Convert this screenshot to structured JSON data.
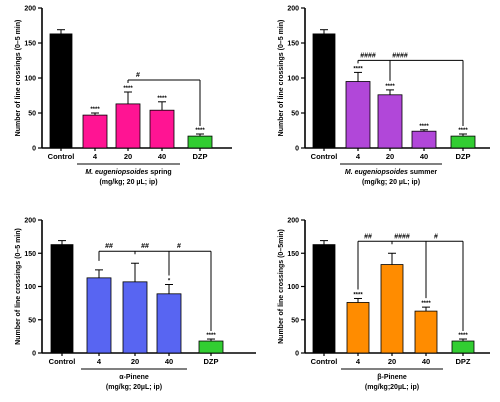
{
  "chart_data": [
    {
      "type": "bar",
      "ylabel": "Number of line crossings (0–5 min)",
      "xlabel_italic": "M. eugeniopsoides",
      "xlabel_rest": " spring",
      "xlabel_line2": "(mg/kg; 20 µL; ip)",
      "group_label": "",
      "ylim": [
        0,
        200
      ],
      "yticks": [
        "0",
        "50",
        "100",
        "150",
        "200"
      ],
      "categories": [
        "Control",
        "4",
        "20",
        "40",
        "DZP"
      ],
      "values": [
        163,
        47,
        63,
        54,
        17
      ],
      "errors": [
        6,
        3,
        17,
        12,
        3
      ],
      "colors": [
        "#000000",
        "#ff1493",
        "#ff1493",
        "#ff1493",
        "#32cd32"
      ],
      "sig_labels": [
        "",
        "****",
        "****",
        "****",
        "****"
      ],
      "brackets": [
        {
          "from": 2,
          "to": 4,
          "label": "#"
        }
      ]
    },
    {
      "type": "bar",
      "ylabel": "Number of line crossings (0–5 min)",
      "xlabel_italic": "M. eugeniopsoides",
      "xlabel_rest": " summer",
      "xlabel_line2": "(mg/kg; 20 µL; ip)",
      "group_label": "",
      "ylim": [
        0,
        200
      ],
      "yticks": [
        "0",
        "50",
        "100",
        "150",
        "200"
      ],
      "categories": [
        "Control",
        "4",
        "20",
        "40",
        "DZP"
      ],
      "values": [
        163,
        95,
        76,
        24,
        17
      ],
      "errors": [
        6,
        13,
        7,
        2,
        3
      ],
      "colors": [
        "#000000",
        "#b147d9",
        "#b147d9",
        "#b147d9",
        "#32cd32"
      ],
      "sig_labels": [
        "",
        "****",
        "****",
        "****",
        "****"
      ],
      "brackets": [
        {
          "from": 1,
          "to": 4,
          "label": "####"
        },
        {
          "from": 2,
          "to": 4,
          "label": "####"
        }
      ]
    },
    {
      "type": "bar",
      "ylabel": "Number of line crossings (0–5 min)",
      "xlabel_italic": "",
      "xlabel_rest": "α-Pinene",
      "xlabel_line2": "(mg/kg; 20µL; ip)",
      "group_label": "",
      "ylim": [
        0,
        200
      ],
      "yticks": [
        "0",
        "50",
        "100",
        "150",
        "200"
      ],
      "categories": [
        "Control",
        "4",
        "20",
        "40",
        "DZP"
      ],
      "values": [
        163,
        113,
        107,
        89,
        18
      ],
      "errors": [
        6,
        12,
        28,
        14,
        3
      ],
      "colors": [
        "#000000",
        "#5865f2",
        "#5865f2",
        "#5865f2",
        "#32cd32"
      ],
      "sig_labels": [
        "",
        "",
        "",
        "*",
        "****"
      ],
      "brackets": [
        {
          "from": 1,
          "to": 4,
          "label": "##"
        },
        {
          "from": 2,
          "to": 4,
          "label": "##"
        },
        {
          "from": 3,
          "to": 4,
          "label": "#"
        }
      ]
    },
    {
      "type": "bar",
      "ylabel": "Number of line crossings (0–5min)",
      "xlabel_italic": "",
      "xlabel_rest": "β-Pinene",
      "xlabel_line2": "(mg/kg;20µL; ip)",
      "group_label": "",
      "ylim": [
        0,
        200
      ],
      "yticks": [
        "0",
        "50",
        "100",
        "150",
        "200"
      ],
      "categories": [
        "Control",
        "4",
        "20",
        "40",
        "DPZ"
      ],
      "values": [
        163,
        76,
        133,
        63,
        18
      ],
      "errors": [
        6,
        6,
        17,
        6,
        3
      ],
      "colors": [
        "#000000",
        "#ff8c00",
        "#ff8c00",
        "#ff8c00",
        "#32cd32"
      ],
      "sig_labels": [
        "",
        "****",
        "",
        "****",
        "****"
      ],
      "brackets": [
        {
          "from": 1,
          "to": 4,
          "label": "##"
        },
        {
          "from": 2,
          "to": 4,
          "label": "####"
        },
        {
          "from": 3,
          "to": 4,
          "label": "#"
        }
      ]
    }
  ]
}
